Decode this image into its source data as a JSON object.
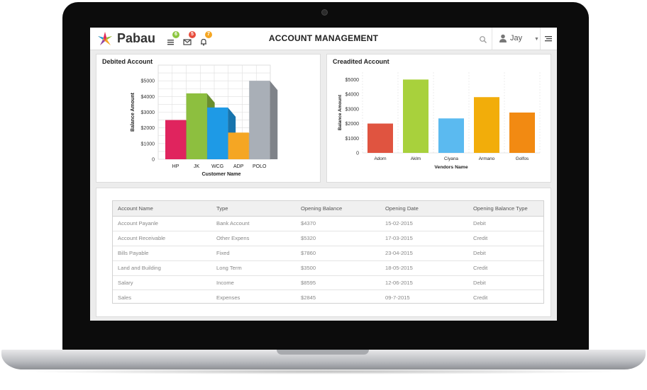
{
  "app": {
    "brand": "Pabau",
    "page_title": "ACCOUNT MANAGEMENT"
  },
  "header": {
    "badges": [
      {
        "icon": "list-icon",
        "count": "6",
        "color": "#8cc63f"
      },
      {
        "icon": "mail-icon",
        "count": "5",
        "color": "#e74c3c"
      },
      {
        "icon": "bell-icon",
        "count": "7",
        "color": "#f5a623"
      }
    ],
    "user_name": "Jay"
  },
  "debited": {
    "title": "Debited Account",
    "chart_data": {
      "type": "bar",
      "title": "Debited Account",
      "categories": [
        "HP",
        "JK",
        "WCG",
        "ADP",
        "POLO"
      ],
      "values": [
        2500,
        4200,
        3300,
        1700,
        5000
      ],
      "colors": [
        "#e0245e",
        "#8dbf3f",
        "#1e9ae6",
        "#f5a623",
        "#a9afb7"
      ],
      "xlabel": "Customer Name",
      "ylabel": "Balance Amount",
      "yticks": [
        "0",
        "$1000",
        "$2000",
        "$3000",
        "$4000",
        "$5000"
      ],
      "ylim": [
        0,
        6000
      ],
      "grid": true
    }
  },
  "credited": {
    "title": "Creadited Account",
    "chart_data": {
      "type": "bar",
      "title": "Creadited Account",
      "categories": [
        "Adorn",
        "Aklm",
        "Ciyana",
        "Armano",
        "Golfos"
      ],
      "values": [
        2000,
        5000,
        2350,
        3800,
        2750
      ],
      "colors": [
        "#e05440",
        "#a8d13c",
        "#5bbaf0",
        "#f2ad0a",
        "#f28a12"
      ],
      "xlabel": "Vendors Name",
      "ylabel": "Balance Amount",
      "yticks": [
        "0",
        "$1000",
        "$2000",
        "$3000",
        "$4000",
        "$5000"
      ],
      "ylim": [
        0,
        5500
      ],
      "grid": true
    }
  },
  "table": {
    "columns": [
      "Account Name",
      "Type",
      "Opening Balance",
      "Opening Date",
      "Opening Balance Type"
    ],
    "rows": [
      [
        "Account Payanle",
        "Bank Account",
        "$4370",
        "15-02-2015",
        "Debit"
      ],
      [
        "Account Receivable",
        "Other Expens",
        "$5320",
        "17-03-2015",
        "Credit"
      ],
      [
        "Bills Payable",
        "Fixed",
        "$7860",
        "23-04-2015",
        "Debit"
      ],
      [
        "Land and Building",
        "Long Term",
        "$3500",
        "18-05-2015",
        "Credit"
      ],
      [
        "Salary",
        "Income",
        "$8595",
        "12-06-2015",
        "Debit"
      ],
      [
        "Sales",
        "Expenses",
        "$2845",
        "09-7-2015",
        "Credit"
      ]
    ]
  }
}
